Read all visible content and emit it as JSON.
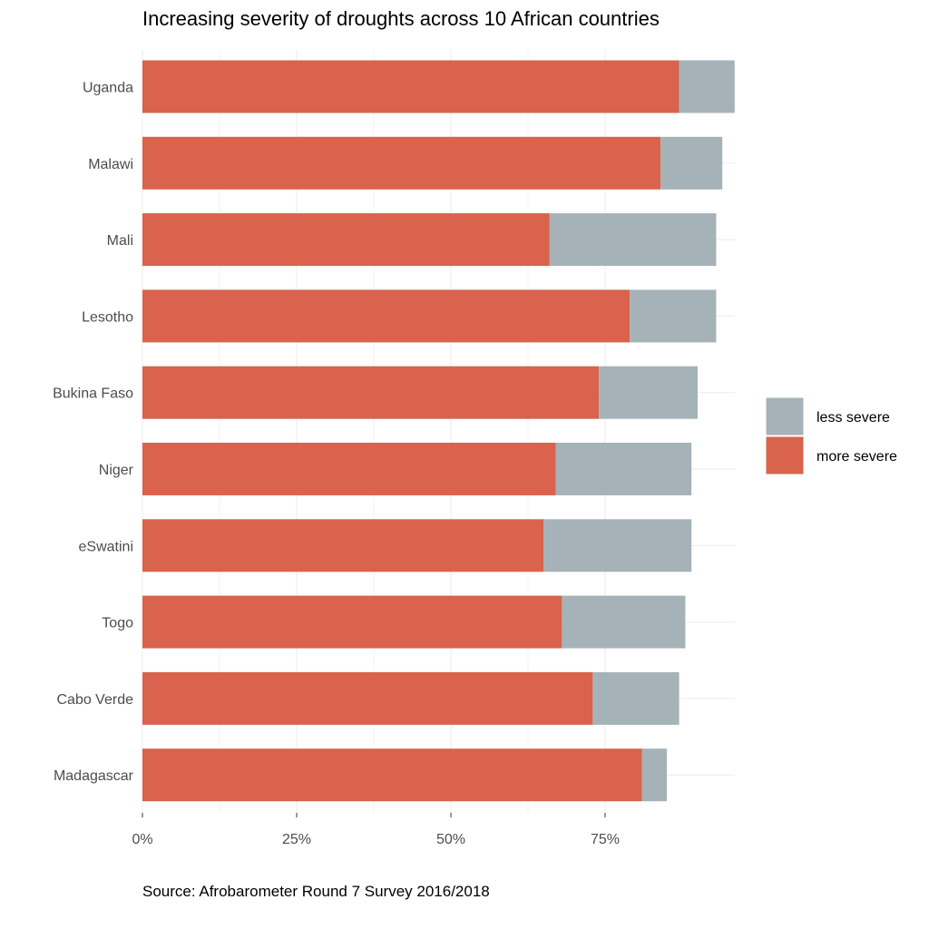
{
  "chart_data": {
    "type": "bar",
    "orientation": "horizontal",
    "stacked": true,
    "title": "Increasing severity of droughts across 10 African countries",
    "caption": "Source: Afrobarometer Round 7 Survey 2016/2018",
    "categories": [
      "Uganda",
      "Malawi",
      "Mali",
      "Lesotho",
      "Bukina Faso",
      "Niger",
      "eSwatini",
      "Togo",
      "Cabo Verde",
      "Madagascar"
    ],
    "series": [
      {
        "name": "more severe",
        "color": "#d9634c",
        "values": [
          87,
          84,
          66,
          79,
          74,
          67,
          65,
          68,
          73,
          81
        ]
      },
      {
        "name": "less severe",
        "color": "#a5b3b8",
        "values": [
          9,
          10,
          27,
          14,
          16,
          22,
          24,
          20,
          14,
          4
        ]
      }
    ],
    "xlim": [
      0,
      96
    ],
    "xticks": [
      0,
      25,
      50,
      75
    ],
    "xtick_labels": [
      "0%",
      "25%",
      "50%",
      "75%"
    ],
    "xlabel": "",
    "ylabel": "",
    "grid": true,
    "legend": {
      "placement": "right",
      "entries": [
        {
          "label": "less severe",
          "color": "#a5b3b8"
        },
        {
          "label": "more severe",
          "color": "#d9634c"
        }
      ]
    }
  }
}
